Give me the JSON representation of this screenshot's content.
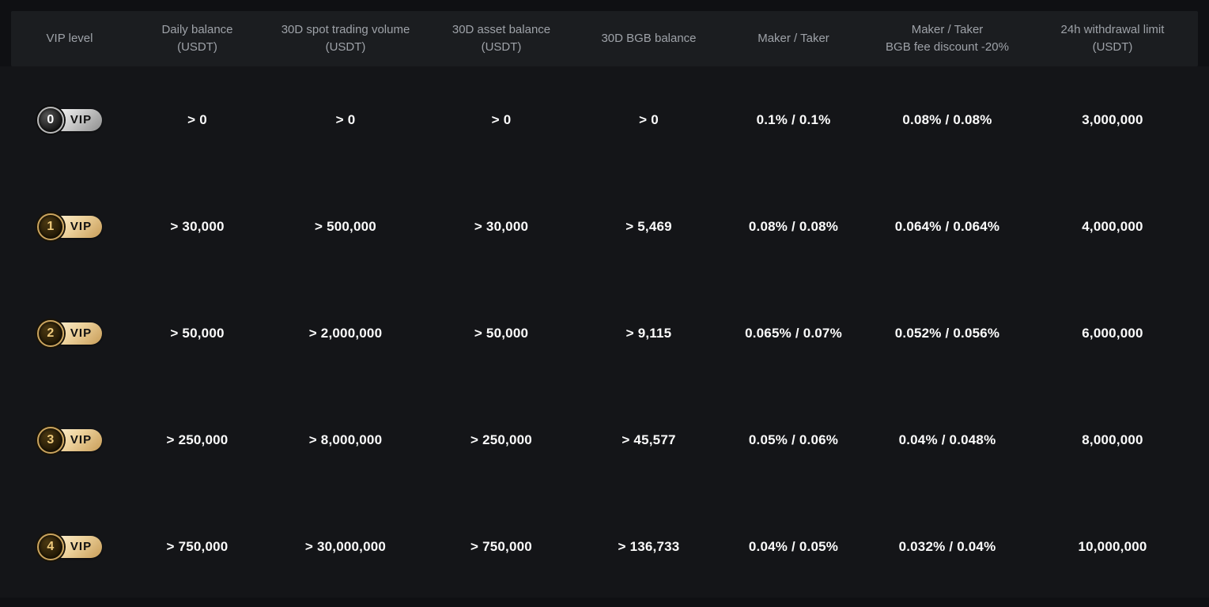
{
  "page": {
    "bg": "#0f1013",
    "header_bg": "#1b1d20",
    "body_bg": "#141518",
    "gold_accent": "#eed39e",
    "silver_accent": "#cfcfcf",
    "muted_text": "#9ea2a8",
    "value_text": "#fbfbfb"
  },
  "vip_badge_label": "VIP",
  "table": {
    "columns": [
      {
        "label": "VIP level"
      },
      {
        "label": "Daily balance\n(USDT)"
      },
      {
        "label": "30D spot trading volume\n(USDT)"
      },
      {
        "label": "30D asset balance\n(USDT)"
      },
      {
        "label": "30D BGB balance"
      },
      {
        "label": "Maker / Taker"
      },
      {
        "label": "Maker / Taker\nBGB fee discount -20%"
      },
      {
        "label": "24h withdrawal limit\n(USDT)"
      }
    ],
    "rows": [
      {
        "level": "0",
        "badge_style": "silver",
        "cells": [
          "> 0",
          "> 0",
          "> 0",
          "> 0",
          "0.1% / 0.1%",
          "0.08% / 0.08%",
          "3,000,000"
        ]
      },
      {
        "level": "1",
        "badge_style": "gold",
        "cells": [
          "> 30,000",
          "> 500,000",
          "> 30,000",
          "> 5,469",
          "0.08% / 0.08%",
          "0.064% / 0.064%",
          "4,000,000"
        ]
      },
      {
        "level": "2",
        "badge_style": "gold",
        "cells": [
          "> 50,000",
          "> 2,000,000",
          "> 50,000",
          "> 9,115",
          "0.065% / 0.07%",
          "0.052% / 0.056%",
          "6,000,000"
        ]
      },
      {
        "level": "3",
        "badge_style": "gold",
        "cells": [
          "> 250,000",
          "> 8,000,000",
          "> 250,000",
          "> 45,577",
          "0.05% / 0.06%",
          "0.04% / 0.048%",
          "8,000,000"
        ]
      },
      {
        "level": "4",
        "badge_style": "gold",
        "cells": [
          "> 750,000",
          "> 30,000,000",
          "> 750,000",
          "> 136,733",
          "0.04% / 0.05%",
          "0.032% / 0.04%",
          "10,000,000"
        ]
      }
    ]
  }
}
